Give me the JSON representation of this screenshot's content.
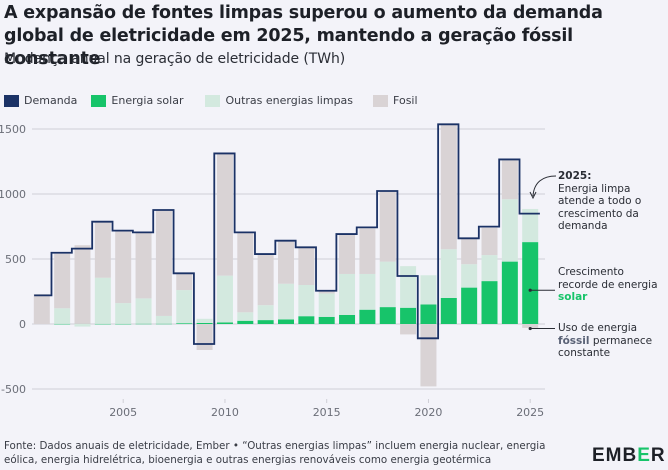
{
  "header": {
    "title": "A expansão de fontes limpas superou o aumento da demanda global de eletricidade em 2025, mantendo a geração fóssil constante",
    "subtitle": "Mudança anual na geração de eletricidade (TWh)"
  },
  "legend": [
    {
      "label": "Demanda",
      "color": "#1b3266",
      "kind": "outline"
    },
    {
      "label": "Energia solar",
      "color": "#17c46a",
      "kind": "fill"
    },
    {
      "label": "Outras energias limpas",
      "color": "#d3e9df",
      "kind": "fill"
    },
    {
      "label": "Fosil",
      "color": "#d9d3d5",
      "kind": "fill"
    }
  ],
  "annotations": {
    "year_heading": "2025:",
    "clean": "Energia limpa atende a todo o crescimento da demanda",
    "solar_prefix": "Crescimento recorde de energia ",
    "solar_highlight": "solar",
    "fossil_prefix": "Uso de energia ",
    "fossil_highlight": "fóssil",
    "fossil_suffix": " permanece constante"
  },
  "footer": {
    "source": "Fonte: Dados anuais de eletricidade, Ember • “Outras energias limpas” incluem energia nuclear, energia eólica, energia hidrelétrica, bioenergia e outras energias renováveis como energia geotérmica",
    "logo_left": "EMB",
    "logo_mid": "E",
    "logo_right": "R"
  },
  "colors": {
    "demand": "#1b3266",
    "solar": "#17c46a",
    "other_clean": "#d3e9df",
    "fossil": "#d9d3d5",
    "grid": "#cfcfd6",
    "axis_text": "#6b6e78"
  },
  "chart_data": {
    "type": "bar",
    "stacked": true,
    "title": "Mudança anual na geração de eletricidade (TWh)",
    "xlabel": "",
    "ylabel": "TWh",
    "ylim": [
      -550,
      1600
    ],
    "yticks": [
      1500,
      1000,
      500,
      0,
      -500
    ],
    "xticks": [
      2005,
      2010,
      2015,
      2020,
      2025
    ],
    "grid": true,
    "legend_position": "top-left",
    "categories": [
      2001,
      2002,
      2003,
      2004,
      2005,
      2006,
      2007,
      2008,
      2009,
      2010,
      2011,
      2012,
      2013,
      2014,
      2015,
      2016,
      2017,
      2018,
      2019,
      2020,
      2021,
      2022,
      2023,
      2024,
      2025
    ],
    "series": [
      {
        "name": "Energia solar",
        "values": [
          0,
          1,
          1,
          1,
          1,
          2,
          2,
          6,
          8,
          12,
          25,
          30,
          35,
          60,
          55,
          70,
          110,
          130,
          125,
          150,
          200,
          280,
          330,
          480,
          630
        ]
      },
      {
        "name": "Outras energias limpas",
        "values": [
          0,
          120,
          -20,
          355,
          160,
          195,
          60,
          255,
          32,
          360,
          65,
          115,
          275,
          240,
          180,
          315,
          275,
          350,
          320,
          225,
          375,
          180,
          200,
          480,
          255
        ]
      },
      {
        "name": "Fosil",
        "values": [
          230,
          420,
          605,
          430,
          555,
          505,
          810,
          130,
          -200,
          940,
          615,
          395,
          330,
          290,
          20,
          305,
          350,
          545,
          -80,
          -480,
          960,
          195,
          210,
          300,
          -30
        ]
      },
      {
        "name": "Demanda",
        "type": "step",
        "values": [
          220,
          548,
          580,
          787,
          718,
          705,
          877,
          390,
          -154,
          1312,
          705,
          538,
          641,
          590,
          256,
          692,
          743,
          1023,
          369,
          -110,
          1536,
          659,
          749,
          1266,
          849
        ]
      }
    ]
  }
}
